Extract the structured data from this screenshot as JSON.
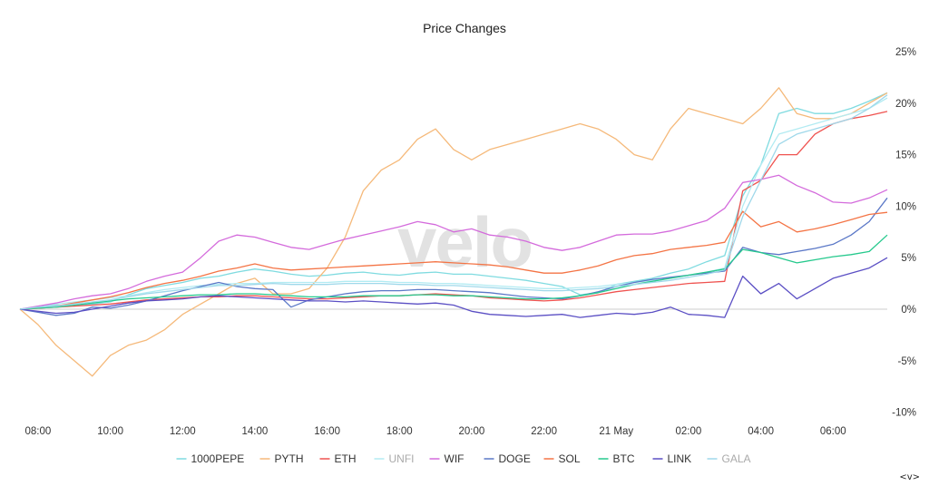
{
  "chart_data": {
    "type": "line",
    "title": "Price Changes",
    "watermark": "velo",
    "x": [
      "07:30",
      "08:00",
      "08:30",
      "09:00",
      "09:30",
      "10:00",
      "10:30",
      "11:00",
      "11:30",
      "12:00",
      "12:30",
      "13:00",
      "13:30",
      "14:00",
      "14:30",
      "15:00",
      "15:30",
      "16:00",
      "16:30",
      "17:00",
      "17:30",
      "18:00",
      "18:30",
      "19:00",
      "19:30",
      "20:00",
      "20:30",
      "21:00",
      "21:30",
      "22:00",
      "22:30",
      "23:00",
      "23:30",
      "00:00",
      "00:30",
      "01:00",
      "01:30",
      "02:00",
      "02:30",
      "03:00",
      "03:30",
      "04:00",
      "04:30",
      "05:00",
      "05:30",
      "06:00",
      "06:30",
      "07:00",
      "07:30"
    ],
    "x_tick_labels": [
      "08:00",
      "10:00",
      "12:00",
      "14:00",
      "16:00",
      "18:00",
      "20:00",
      "22:00",
      "21 May",
      "02:00",
      "04:00",
      "06:00"
    ],
    "x_tick_positions": [
      "08:00",
      "10:00",
      "12:00",
      "14:00",
      "16:00",
      "18:00",
      "20:00",
      "22:00",
      "00:00",
      "02:00",
      "04:00",
      "06:00"
    ],
    "y_unit": "%",
    "ylim": [
      -10,
      25
    ],
    "y_ticks": [
      25,
      20,
      15,
      10,
      5,
      0,
      -5,
      -10
    ],
    "y_tick_labels": [
      "25%",
      "20%",
      "15%",
      "10%",
      "5%",
      "0%",
      "-5%",
      "-10%"
    ],
    "y_axis_position": "right",
    "grid": false,
    "legend_position": "bottom",
    "series": [
      {
        "name": "1000PEPE",
        "color": "#7fdbe0",
        "legend_muted": false,
        "values": [
          0,
          0.2,
          0.4,
          0.3,
          0.5,
          0.7,
          1.4,
          2.0,
          2.3,
          2.6,
          3.0,
          3.2,
          3.6,
          3.9,
          3.7,
          3.4,
          3.2,
          3.3,
          3.5,
          3.6,
          3.4,
          3.3,
          3.5,
          3.6,
          3.4,
          3.4,
          3.2,
          3.0,
          2.8,
          2.5,
          2.2,
          1.4,
          1.6,
          2.4,
          2.7,
          3.0,
          3.5,
          3.9,
          4.6,
          5.2,
          11.0,
          14.0,
          19.0,
          19.5,
          19.0,
          19.0,
          19.5,
          20.2,
          21.0
        ]
      },
      {
        "name": "PYTH",
        "color": "#f5b97a",
        "legend_muted": false,
        "values": [
          0,
          -1.5,
          -3.5,
          -5.0,
          -6.5,
          -4.5,
          -3.5,
          -3.0,
          -2.0,
          -0.5,
          0.5,
          1.5,
          2.5,
          3.0,
          1.5,
          1.5,
          2.0,
          4.0,
          7.0,
          11.5,
          13.5,
          14.5,
          16.5,
          17.5,
          15.5,
          14.5,
          15.5,
          16.0,
          16.5,
          17.0,
          17.5,
          18.0,
          17.5,
          16.5,
          15.0,
          14.5,
          17.5,
          19.5,
          19.0,
          18.5,
          18.0,
          19.5,
          21.5,
          19.0,
          18.5,
          18.5,
          19.0,
          20.0,
          21.0
        ]
      },
      {
        "name": "ETH",
        "color": "#ef5350",
        "legend_muted": false,
        "values": [
          0,
          0.1,
          0.2,
          0.3,
          0.4,
          0.5,
          0.7,
          0.9,
          1.0,
          1.1,
          1.2,
          1.2,
          1.3,
          1.3,
          1.2,
          1.1,
          1.0,
          1.0,
          1.1,
          1.2,
          1.3,
          1.3,
          1.4,
          1.5,
          1.4,
          1.3,
          1.1,
          1.0,
          0.9,
          0.8,
          0.9,
          1.1,
          1.4,
          1.7,
          1.9,
          2.1,
          2.3,
          2.5,
          2.6,
          2.7,
          11.5,
          12.5,
          15.0,
          15.0,
          17.0,
          18.0,
          18.5,
          18.8,
          19.2
        ]
      },
      {
        "name": "UNFI",
        "color": "#b2ebf2",
        "legend_muted": true,
        "values": [
          0,
          0.3,
          0.5,
          0.7,
          0.9,
          1.1,
          1.3,
          1.6,
          1.9,
          2.1,
          2.3,
          2.4,
          2.5,
          2.5,
          2.6,
          2.6,
          2.6,
          2.6,
          2.7,
          2.7,
          2.7,
          2.6,
          2.6,
          2.5,
          2.5,
          2.4,
          2.3,
          2.2,
          2.1,
          2.0,
          2.0,
          2.1,
          2.2,
          2.4,
          2.6,
          2.8,
          3.0,
          3.3,
          3.6,
          4.0,
          10.0,
          14.0,
          17.0,
          17.5,
          18.0,
          18.5,
          19.0,
          19.5,
          20.5
        ]
      },
      {
        "name": "WIF",
        "color": "#d46bdc",
        "legend_muted": false,
        "values": [
          0,
          0.3,
          0.6,
          1.0,
          1.3,
          1.5,
          2.0,
          2.7,
          3.2,
          3.6,
          5.0,
          6.6,
          7.2,
          7.0,
          6.5,
          6.0,
          5.8,
          6.3,
          6.8,
          7.2,
          7.6,
          8.0,
          8.5,
          8.2,
          7.5,
          7.8,
          7.2,
          7.0,
          6.6,
          6.0,
          5.7,
          6.0,
          6.6,
          7.2,
          7.3,
          7.3,
          7.6,
          8.1,
          8.6,
          9.8,
          12.3,
          12.6,
          13.0,
          12.0,
          11.3,
          10.4,
          10.3,
          10.8,
          11.6
        ]
      },
      {
        "name": "DOGE",
        "color": "#5b78c7",
        "legend_muted": false,
        "values": [
          0,
          -0.3,
          -0.6,
          -0.4,
          0.2,
          0.1,
          0.4,
          0.8,
          1.3,
          1.8,
          2.2,
          2.6,
          2.2,
          2.0,
          1.9,
          0.2,
          0.9,
          1.2,
          1.5,
          1.7,
          1.8,
          1.8,
          1.9,
          1.9,
          1.8,
          1.7,
          1.6,
          1.4,
          1.2,
          1.1,
          1.0,
          1.3,
          1.7,
          2.2,
          2.6,
          2.9,
          3.1,
          3.3,
          3.5,
          3.7,
          6.0,
          5.5,
          5.3,
          5.6,
          5.9,
          6.3,
          7.2,
          8.5,
          10.8
        ]
      },
      {
        "name": "SOL",
        "color": "#f47445",
        "legend_muted": false,
        "values": [
          0,
          0.1,
          0.3,
          0.6,
          0.9,
          1.2,
          1.6,
          2.1,
          2.5,
          2.8,
          3.2,
          3.7,
          4.0,
          4.4,
          4.0,
          3.8,
          3.9,
          4.0,
          4.1,
          4.2,
          4.3,
          4.4,
          4.5,
          4.6,
          4.5,
          4.4,
          4.3,
          4.1,
          3.8,
          3.5,
          3.5,
          3.8,
          4.2,
          4.8,
          5.2,
          5.4,
          5.8,
          6.0,
          6.2,
          6.5,
          9.5,
          8.0,
          8.5,
          7.5,
          7.8,
          8.2,
          8.7,
          9.2,
          9.4
        ]
      },
      {
        "name": "BTC",
        "color": "#26c98d",
        "legend_muted": false,
        "values": [
          0,
          0.1,
          0.2,
          0.4,
          0.6,
          0.8,
          1.0,
          1.1,
          1.2,
          1.3,
          1.4,
          1.4,
          1.5,
          1.5,
          1.4,
          1.3,
          1.2,
          1.2,
          1.2,
          1.3,
          1.3,
          1.3,
          1.4,
          1.4,
          1.3,
          1.3,
          1.2,
          1.1,
          1.0,
          1.0,
          1.1,
          1.3,
          1.6,
          2.0,
          2.4,
          2.7,
          3.0,
          3.3,
          3.6,
          3.9,
          5.8,
          5.5,
          5.0,
          4.5,
          4.8,
          5.1,
          5.3,
          5.6,
          7.2
        ]
      },
      {
        "name": "LINK",
        "color": "#5b4fc4",
        "legend_muted": false,
        "values": [
          0,
          -0.2,
          -0.4,
          -0.3,
          0.0,
          0.3,
          0.6,
          0.8,
          0.9,
          1.0,
          1.2,
          1.3,
          1.2,
          1.1,
          1.0,
          0.9,
          0.8,
          0.8,
          0.7,
          0.8,
          0.7,
          0.6,
          0.5,
          0.6,
          0.4,
          -0.2,
          -0.5,
          -0.6,
          -0.7,
          -0.6,
          -0.5,
          -0.8,
          -0.6,
          -0.4,
          -0.5,
          -0.3,
          0.2,
          -0.5,
          -0.6,
          -0.8,
          3.2,
          1.5,
          2.5,
          1.0,
          2.0,
          3.0,
          3.5,
          4.0,
          5.0
        ]
      },
      {
        "name": "GALA",
        "color": "#9fd8ea",
        "legend_muted": true,
        "values": [
          0,
          0.2,
          0.3,
          0.5,
          0.7,
          0.9,
          1.2,
          1.5,
          1.7,
          1.9,
          2.1,
          2.3,
          2.3,
          2.4,
          2.5,
          2.4,
          2.4,
          2.4,
          2.5,
          2.5,
          2.5,
          2.4,
          2.4,
          2.3,
          2.3,
          2.2,
          2.1,
          2.0,
          1.9,
          1.8,
          1.8,
          1.9,
          2.0,
          2.2,
          2.4,
          2.6,
          2.8,
          3.1,
          3.4,
          3.8,
          9.0,
          12.5,
          16.0,
          17.0,
          17.5,
          18.0,
          18.5,
          19.5,
          20.8
        ]
      }
    ]
  },
  "nav": {
    "label": "<v>"
  }
}
